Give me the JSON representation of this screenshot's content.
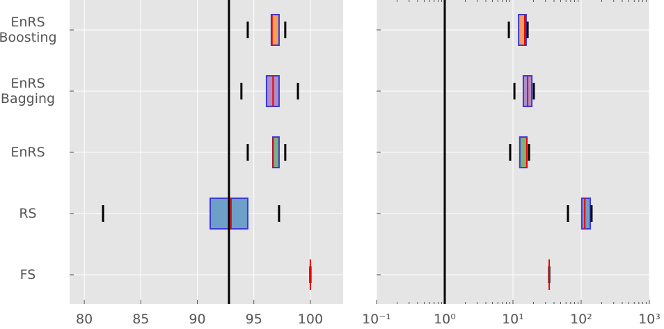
{
  "chart_data": [
    {
      "type": "box",
      "categories": [
        "EnRS\nBoosting",
        "EnRS\nBagging",
        "EnRS",
        "RS",
        "FS"
      ],
      "boxes": [
        {
          "low": 94.46,
          "q1": 96.55,
          "median": 96.6,
          "q3": 97.23,
          "high": 97.78,
          "color": "#f2a05c"
        },
        {
          "low": 93.9,
          "q1": 96.12,
          "median": 96.7,
          "q3": 97.23,
          "high": 98.9,
          "color": "#b08cc8"
        },
        {
          "low": 94.46,
          "q1": 96.68,
          "median": 96.7,
          "q3": 97.23,
          "high": 97.78,
          "color": "#80b07a"
        },
        {
          "low": 81.66,
          "q1": 91.14,
          "median": 92.98,
          "q3": 94.46,
          "high": 97.23,
          "color": "#6e9fc8"
        },
        {
          "low": 100,
          "q1": 100,
          "median": 100,
          "q3": 100,
          "high": 100,
          "color": "#6e9fc8"
        }
      ],
      "xlim": [
        78.7,
        102.9
      ],
      "xticks": [
        80,
        85,
        90,
        95,
        100
      ],
      "log": false,
      "reference_line": 92.8,
      "grid": true
    },
    {
      "type": "box",
      "boxes": [
        {
          "low": 8.7,
          "q1": 12.1,
          "median": 14.9,
          "q3": 15.6,
          "high": 16.4,
          "color": "#f2a05c"
        },
        {
          "low": 10.5,
          "q1": 14.2,
          "median": 16.4,
          "q3": 18.9,
          "high": 20.2,
          "color": "#b08cc8"
        },
        {
          "low": 9.1,
          "q1": 12.6,
          "median": 16.0,
          "q3": 16.0,
          "high": 17.2,
          "color": "#80b07a"
        },
        {
          "low": 64,
          "q1": 102,
          "median": 113,
          "q3": 136,
          "high": 142,
          "color": "#6e9fc8"
        },
        {
          "low": 34,
          "q1": 34,
          "median": 34,
          "q3": 34,
          "high": 34,
          "color": "#6e9fc8"
        }
      ],
      "xlim": [
        0.1,
        1000
      ],
      "xticks": [
        {
          "value": 0.1,
          "label": "10⁻¹"
        },
        {
          "value": 1,
          "label": "10⁰"
        },
        {
          "value": 10,
          "label": "10¹"
        },
        {
          "value": 100,
          "label": "10²"
        },
        {
          "value": 1000,
          "label": "10³"
        }
      ],
      "minor_xticks": [
        0.2,
        0.3,
        0.4,
        0.5,
        0.6,
        0.7,
        0.8,
        0.9,
        2,
        3,
        4,
        5,
        6,
        7,
        8,
        9,
        20,
        30,
        40,
        50,
        60,
        70,
        80,
        90,
        200,
        300,
        400,
        500,
        600,
        700,
        800,
        900
      ],
      "log": true,
      "reference_line": 1,
      "grid": true
    }
  ]
}
